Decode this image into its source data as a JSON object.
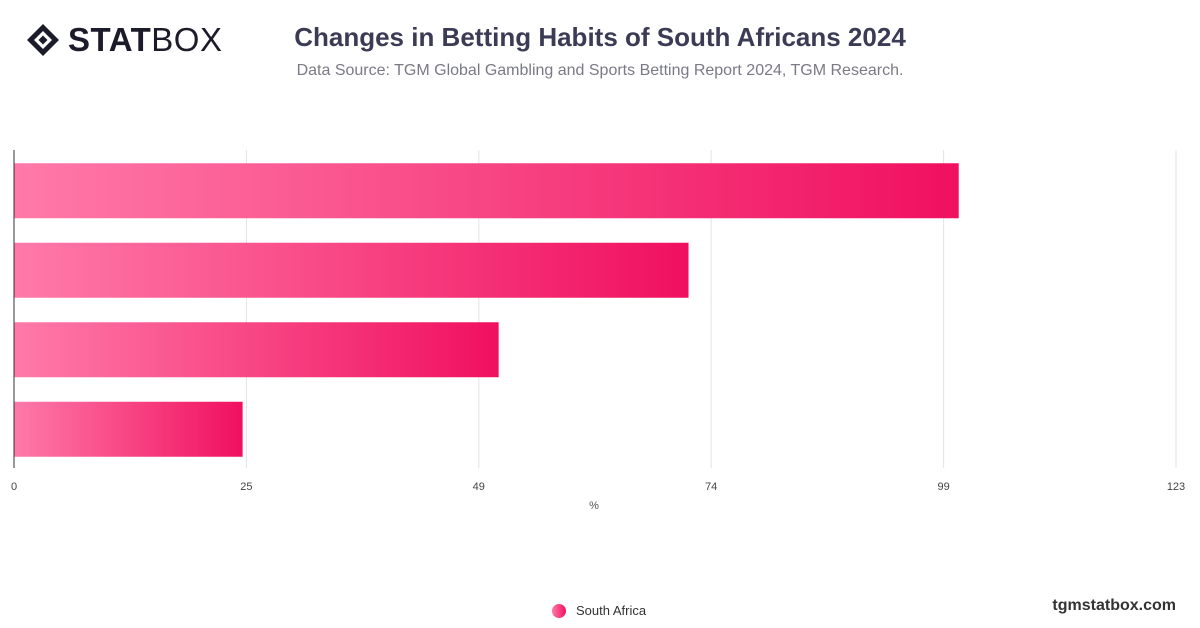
{
  "brand": {
    "stat": "STAT",
    "box": "BOX",
    "icon": "statbox-diamond-icon"
  },
  "header": {
    "title": "Changes in Betting Habits of South Africans 2024",
    "subtitle": "Data Source: TGM Global Gambling and Sports Betting Report 2024, TGM Research."
  },
  "footer": {
    "site": "tgmstatbox.com"
  },
  "chart_data": {
    "type": "bar",
    "orientation": "horizontal",
    "title": "Changes in Betting Habits of South Africans 2024",
    "xlabel": "%",
    "xlim": [
      0,
      123
    ],
    "ticks": [
      "0",
      "25",
      "49",
      "74",
      "99",
      "123"
    ],
    "tick_values": [
      0,
      24.6,
      49.2,
      73.8,
      98.4,
      123
    ],
    "categories": [
      "",
      "",
      "",
      ""
    ],
    "series": [
      {
        "name": "South Africa",
        "values": [
          100,
          71.4,
          51.3,
          24.2
        ]
      }
    ],
    "grid": "vertical",
    "legend": "bottom-center",
    "colors": {
      "bar_start": "#ff7aa8",
      "bar_end": "#f0105f"
    }
  }
}
